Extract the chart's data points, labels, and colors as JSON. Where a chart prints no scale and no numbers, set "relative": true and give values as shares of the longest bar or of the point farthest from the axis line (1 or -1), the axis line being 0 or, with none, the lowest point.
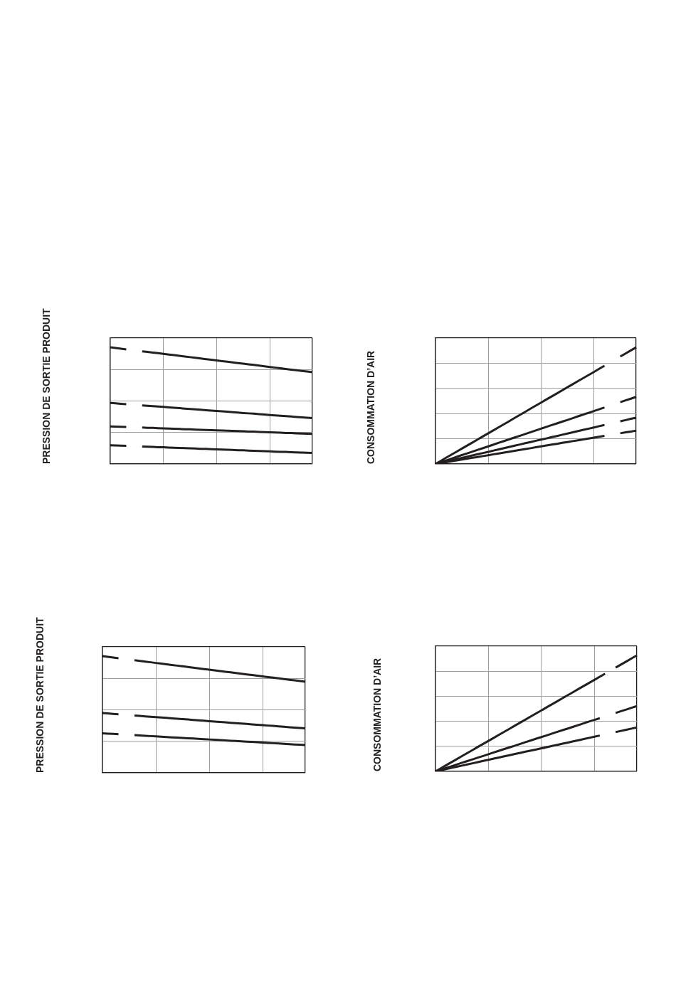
{
  "chart_data": [
    {
      "type": "line",
      "ylabel": "PRESSION DE SORTIE PRODUIT",
      "relative": true,
      "grid": true,
      "marker": "none",
      "categories": [
        null,
        null,
        null,
        null,
        null,
        null,
        null,
        null,
        null,
        null,
        null,
        null,
        null,
        null,
        null,
        null,
        null,
        null,
        null,
        null,
        null,
        null,
        null,
        null,
        null,
        null,
        null,
        null,
        null,
        null,
        null,
        null,
        null,
        null,
        null,
        null,
        null,
        null,
        null
      ],
      "series": [
        {
          "color": "#231f20",
          "values": [
            1,
            0.994,
            0.989,
            0.983,
            null,
            null,
            null,
            null,
            null,
            null,
            null,
            null,
            null,
            null,
            null,
            null,
            null,
            null,
            null,
            null,
            null,
            null,
            null,
            null,
            null,
            null,
            null,
            null,
            null,
            null,
            null,
            null,
            null,
            null,
            null,
            null,
            null,
            null,
            null
          ]
        },
        {
          "color": "#231f20",
          "values": [
            null,
            null,
            null,
            null,
            null,
            null,
            0.966,
            0.961,
            0.955,
            0.95,
            0.944,
            0.938,
            0.933,
            0.927,
            0.922,
            0.916,
            0.91,
            0.905,
            0.899,
            0.894,
            0.888,
            0.882,
            0.877,
            0.871,
            0.865,
            0.86,
            0.854,
            0.849,
            0.843,
            0.837,
            0.832,
            0.826,
            0.821,
            0.815,
            0.809,
            0.804,
            0.798,
            0.793,
            0.787
          ]
        },
        {
          "color": "#231f20",
          "values": [
            0.523,
            0.52,
            0.516,
            0.513,
            null,
            null,
            null,
            null,
            null,
            null,
            null,
            null,
            null,
            null,
            null,
            null,
            null,
            null,
            null,
            null,
            null,
            null,
            null,
            null,
            null,
            null,
            null,
            null,
            null,
            null,
            null,
            null,
            null,
            null,
            null,
            null,
            null,
            null,
            null
          ]
        },
        {
          "color": "#231f20",
          "values": [
            null,
            null,
            null,
            null,
            null,
            null,
            0.502,
            0.499,
            0.496,
            0.492,
            0.489,
            0.485,
            0.482,
            0.479,
            0.475,
            0.472,
            0.468,
            0.465,
            0.461,
            0.458,
            0.455,
            0.451,
            0.448,
            0.444,
            0.441,
            0.437,
            0.434,
            0.431,
            0.427,
            0.424,
            0.42,
            0.417,
            0.414,
            0.41,
            0.407,
            0.403,
            0.4,
            0.396,
            0.393
          ]
        },
        {
          "color": "#231f20",
          "values": [
            0.322,
            0.32,
            0.319,
            0.317,
            null,
            null,
            null,
            null,
            null,
            null,
            null,
            null,
            null,
            null,
            null,
            null,
            null,
            null,
            null,
            null,
            null,
            null,
            null,
            null,
            null,
            null,
            null,
            null,
            null,
            null,
            null,
            null,
            null,
            null,
            null,
            null,
            null,
            null,
            null
          ]
        },
        {
          "color": "#231f20",
          "values": [
            null,
            null,
            null,
            null,
            null,
            null,
            0.312,
            0.31,
            0.309,
            0.307,
            0.305,
            0.303,
            0.302,
            0.3,
            0.298,
            0.297,
            0.295,
            0.293,
            0.292,
            0.29,
            0.288,
            0.287,
            0.285,
            0.283,
            0.282,
            0.28,
            0.278,
            0.277,
            0.275,
            0.273,
            0.271,
            0.27,
            0.268,
            0.266,
            0.265,
            0.263,
            0.261,
            0.26,
            0.258
          ]
        },
        {
          "color": "#231f20",
          "values": [
            0.16,
            0.158,
            0.157,
            0.155,
            null,
            null,
            null,
            null,
            null,
            null,
            null,
            null,
            null,
            null,
            null,
            null,
            null,
            null,
            null,
            null,
            null,
            null,
            null,
            null,
            null,
            null,
            null,
            null,
            null,
            null,
            null,
            null,
            null,
            null,
            null,
            null,
            null,
            null,
            null
          ]
        },
        {
          "color": "#231f20",
          "values": [
            null,
            null,
            null,
            null,
            null,
            null,
            0.15,
            0.148,
            0.146,
            0.144,
            0.143,
            0.141,
            0.139,
            0.137,
            0.136,
            0.134,
            0.132,
            0.13,
            0.129,
            0.127,
            0.125,
            0.124,
            0.122,
            0.12,
            0.118,
            0.117,
            0.115,
            0.113,
            0.111,
            0.11,
            0.108,
            0.106,
            0.104,
            0.103,
            0.101,
            0.099,
            0.097,
            0.096,
            0.094
          ]
        }
      ]
    },
    {
      "type": "line",
      "ylabel": "CONSOMMATION D’AIR",
      "relative": true,
      "grid": true,
      "marker": "none",
      "categories": [
        null,
        null,
        null,
        null,
        null,
        null,
        null,
        null,
        null,
        null,
        null,
        null,
        null,
        null,
        null,
        null,
        null,
        null,
        null,
        null,
        null,
        null,
        null,
        null,
        null,
        null,
        null,
        null,
        null,
        null,
        null,
        null,
        null,
        null,
        null,
        null,
        null,
        null,
        null
      ],
      "series": [
        {
          "color": "#231f20",
          "values": [
            0,
            0.026,
            0.053,
            0.079,
            0.105,
            0.132,
            0.158,
            0.184,
            0.211,
            0.237,
            0.263,
            0.289,
            0.316,
            0.342,
            0.368,
            0.395,
            0.421,
            0.447,
            0.474,
            0.5,
            0.526,
            0.553,
            0.579,
            0.605,
            0.632,
            0.658,
            0.684,
            0.711,
            0.737,
            0.763,
            0.789,
            0.816,
            0.842,
            null,
            null,
            null,
            null,
            null,
            null
          ]
        },
        {
          "color": "#231f20",
          "values": [
            null,
            null,
            null,
            null,
            null,
            null,
            null,
            null,
            null,
            null,
            null,
            null,
            null,
            null,
            null,
            null,
            null,
            null,
            null,
            null,
            null,
            null,
            null,
            null,
            null,
            null,
            null,
            null,
            null,
            null,
            null,
            null,
            null,
            null,
            null,
            0.921,
            0.947,
            0.974,
            1
          ]
        },
        {
          "color": "#231f20",
          "values": [
            0,
            0.015,
            0.03,
            0.045,
            0.061,
            0.076,
            0.091,
            0.106,
            0.121,
            0.136,
            0.151,
            0.166,
            0.182,
            0.197,
            0.212,
            0.227,
            0.242,
            0.257,
            0.272,
            0.288,
            0.303,
            0.318,
            0.333,
            0.348,
            0.363,
            0.378,
            0.393,
            0.409,
            0.424,
            0.439,
            0.454,
            0.469,
            0.484,
            null,
            null,
            null,
            null,
            null,
            null
          ]
        },
        {
          "color": "#231f20",
          "values": [
            null,
            null,
            null,
            null,
            null,
            null,
            null,
            null,
            null,
            null,
            null,
            null,
            null,
            null,
            null,
            null,
            null,
            null,
            null,
            null,
            null,
            null,
            null,
            null,
            null,
            null,
            null,
            null,
            null,
            null,
            null,
            null,
            null,
            null,
            null,
            0.53,
            0.545,
            0.56,
            0.575
          ]
        },
        {
          "color": "#231f20",
          "values": [
            0,
            0.01,
            0.021,
            0.031,
            0.042,
            0.052,
            0.063,
            0.073,
            0.084,
            0.094,
            0.104,
            0.115,
            0.125,
            0.136,
            0.146,
            0.157,
            0.167,
            0.178,
            0.188,
            0.199,
            0.209,
            0.219,
            0.23,
            0.24,
            0.251,
            0.261,
            0.272,
            0.282,
            0.293,
            0.303,
            0.313,
            0.324,
            0.334,
            null,
            null,
            null,
            null,
            null,
            null
          ]
        },
        {
          "color": "#231f20",
          "values": [
            null,
            null,
            null,
            null,
            null,
            null,
            null,
            null,
            null,
            null,
            null,
            null,
            null,
            null,
            null,
            null,
            null,
            null,
            null,
            null,
            null,
            null,
            null,
            null,
            null,
            null,
            null,
            null,
            null,
            null,
            null,
            null,
            null,
            null,
            null,
            0.366,
            0.376,
            0.387,
            0.397
          ]
        },
        {
          "color": "#231f20",
          "values": [
            0,
            0.008,
            0.015,
            0.023,
            0.03,
            0.038,
            0.045,
            0.053,
            0.06,
            0.068,
            0.075,
            0.083,
            0.09,
            0.098,
            0.105,
            0.113,
            0.12,
            0.128,
            0.135,
            0.143,
            0.151,
            0.158,
            0.166,
            0.173,
            0.181,
            0.188,
            0.196,
            0.203,
            0.211,
            0.218,
            0.226,
            0.233,
            0.241,
            null,
            null,
            null,
            null,
            null,
            null
          ]
        },
        {
          "color": "#231f20",
          "values": [
            null,
            null,
            null,
            null,
            null,
            null,
            null,
            null,
            null,
            null,
            null,
            null,
            null,
            null,
            null,
            null,
            null,
            null,
            null,
            null,
            null,
            null,
            null,
            null,
            null,
            null,
            null,
            null,
            null,
            null,
            null,
            null,
            null,
            null,
            null,
            0.263,
            0.271,
            0.278,
            0.286
          ]
        }
      ]
    },
    {
      "type": "line",
      "ylabel": "PRESSION DE SORTIE PRODUIT",
      "relative": true,
      "grid": true,
      "marker": "none",
      "categories": [
        null,
        null,
        null,
        null,
        null,
        null,
        null,
        null,
        null,
        null,
        null,
        null,
        null,
        null,
        null,
        null,
        null,
        null,
        null,
        null,
        null,
        null,
        null,
        null,
        null,
        null,
        null,
        null,
        null,
        null,
        null,
        null,
        null,
        null,
        null,
        null,
        null,
        null,
        null
      ],
      "series": [
        {
          "color": "#231f20",
          "values": [
            1,
            0.994,
            0.988,
            0.983,
            null,
            null,
            null,
            null,
            null,
            null,
            null,
            null,
            null,
            null,
            null,
            null,
            null,
            null,
            null,
            null,
            null,
            null,
            null,
            null,
            null,
            null,
            null,
            null,
            null,
            null,
            null,
            null,
            null,
            null,
            null,
            null,
            null,
            null,
            null
          ]
        },
        {
          "color": "#231f20",
          "values": [
            null,
            null,
            null,
            null,
            null,
            null,
            0.965,
            0.96,
            0.954,
            0.948,
            0.942,
            0.937,
            0.931,
            0.925,
            0.919,
            0.914,
            0.908,
            0.902,
            0.896,
            0.89,
            0.885,
            0.879,
            0.873,
            0.867,
            0.862,
            0.856,
            0.85,
            0.844,
            0.839,
            0.833,
            0.827,
            0.821,
            0.816,
            0.81,
            0.804,
            0.798,
            0.793,
            0.787,
            0.781
          ]
        },
        {
          "color": "#231f20",
          "values": [
            0.512,
            0.509,
            0.505,
            0.502,
            null,
            null,
            null,
            null,
            null,
            null,
            null,
            null,
            null,
            null,
            null,
            null,
            null,
            null,
            null,
            null,
            null,
            null,
            null,
            null,
            null,
            null,
            null,
            null,
            null,
            null,
            null,
            null,
            null,
            null,
            null,
            null,
            null,
            null,
            null
          ]
        },
        {
          "color": "#231f20",
          "values": [
            null,
            null,
            null,
            null,
            null,
            null,
            0.491,
            0.488,
            0.484,
            0.481,
            0.478,
            0.474,
            0.471,
            0.467,
            0.464,
            0.46,
            0.457,
            0.453,
            0.45,
            0.447,
            0.443,
            0.44,
            0.436,
            0.433,
            0.429,
            0.426,
            0.422,
            0.419,
            0.415,
            0.412,
            0.409,
            0.405,
            0.402,
            0.398,
            0.395,
            0.391,
            0.388,
            0.384,
            0.381
          ]
        },
        {
          "color": "#231f20",
          "values": [
            0.339,
            0.336,
            0.334,
            0.331,
            null,
            null,
            null,
            null,
            null,
            null,
            null,
            null,
            null,
            null,
            null,
            null,
            null,
            null,
            null,
            null,
            null,
            null,
            null,
            null,
            null,
            null,
            null,
            null,
            null,
            null,
            null,
            null,
            null,
            null,
            null,
            null,
            null,
            null,
            null
          ]
        },
        {
          "color": "#231f20",
          "values": [
            null,
            null,
            null,
            null,
            null,
            null,
            0.323,
            0.32,
            0.318,
            0.315,
            0.312,
            0.31,
            0.307,
            0.304,
            0.302,
            0.299,
            0.296,
            0.294,
            0.291,
            0.289,
            0.286,
            0.283,
            0.281,
            0.278,
            0.275,
            0.273,
            0.27,
            0.267,
            0.265,
            0.262,
            0.259,
            0.257,
            0.254,
            0.251,
            0.249,
            0.246,
            0.243,
            0.241,
            0.238
          ]
        }
      ]
    },
    {
      "type": "line",
      "ylabel": "CONSOMMATION D’AIR",
      "relative": true,
      "grid": true,
      "marker": "none",
      "categories": [
        null,
        null,
        null,
        null,
        null,
        null,
        null,
        null,
        null,
        null,
        null,
        null,
        null,
        null,
        null,
        null,
        null,
        null,
        null,
        null,
        null,
        null,
        null,
        null,
        null,
        null,
        null,
        null,
        null,
        null,
        null,
        null,
        null,
        null,
        null,
        null,
        null,
        null,
        null
      ],
      "series": [
        {
          "color": "#231f20",
          "values": [
            0,
            0.026,
            0.053,
            0.079,
            0.105,
            0.132,
            0.158,
            0.184,
            0.211,
            0.237,
            0.263,
            0.289,
            0.316,
            0.342,
            0.368,
            0.395,
            0.421,
            0.447,
            0.474,
            0.5,
            0.526,
            0.553,
            0.579,
            0.605,
            0.632,
            0.658,
            0.684,
            0.711,
            0.737,
            0.763,
            0.789,
            0.816,
            0.842,
            null,
            null,
            null,
            null,
            null,
            null
          ]
        },
        {
          "color": "#231f20",
          "values": [
            null,
            null,
            null,
            null,
            null,
            null,
            null,
            null,
            null,
            null,
            null,
            null,
            null,
            null,
            null,
            null,
            null,
            null,
            null,
            null,
            null,
            null,
            null,
            null,
            null,
            null,
            null,
            null,
            null,
            null,
            null,
            null,
            null,
            null,
            0.895,
            0.921,
            0.947,
            0.974,
            1
          ]
        },
        {
          "color": "#231f20",
          "values": [
            0,
            0.015,
            0.03,
            0.044,
            0.059,
            0.074,
            0.089,
            0.104,
            0.119,
            0.133,
            0.148,
            0.163,
            0.178,
            0.193,
            0.207,
            0.222,
            0.237,
            0.252,
            0.267,
            0.282,
            0.296,
            0.311,
            0.326,
            0.341,
            0.356,
            0.37,
            0.385,
            0.4,
            0.415,
            0.43,
            0.444,
            0.459,
            null,
            null,
            null,
            null,
            null,
            null,
            null
          ]
        },
        {
          "color": "#231f20",
          "values": [
            null,
            null,
            null,
            null,
            null,
            null,
            null,
            null,
            null,
            null,
            null,
            null,
            null,
            null,
            null,
            null,
            null,
            null,
            null,
            null,
            null,
            null,
            null,
            null,
            null,
            null,
            null,
            null,
            null,
            null,
            null,
            null,
            null,
            null,
            0.504,
            0.519,
            0.533,
            0.548,
            0.563
          ]
        },
        {
          "color": "#231f20",
          "values": [
            0,
            0.01,
            0.02,
            0.03,
            0.04,
            0.05,
            0.06,
            0.07,
            0.08,
            0.09,
            0.1,
            0.11,
            0.12,
            0.13,
            0.14,
            0.15,
            0.16,
            0.17,
            0.18,
            0.189,
            0.199,
            0.209,
            0.219,
            0.229,
            0.239,
            0.249,
            0.259,
            0.269,
            0.279,
            0.289,
            0.299,
            0.309,
            null,
            null,
            null,
            null,
            null,
            null,
            null
          ]
        },
        {
          "color": "#231f20",
          "values": [
            null,
            null,
            null,
            null,
            null,
            null,
            null,
            null,
            null,
            null,
            null,
            null,
            null,
            null,
            null,
            null,
            null,
            null,
            null,
            null,
            null,
            null,
            null,
            null,
            null,
            null,
            null,
            null,
            null,
            null,
            null,
            null,
            null,
            null,
            0.339,
            0.349,
            0.359,
            0.369,
            0.379
          ]
        }
      ]
    }
  ]
}
